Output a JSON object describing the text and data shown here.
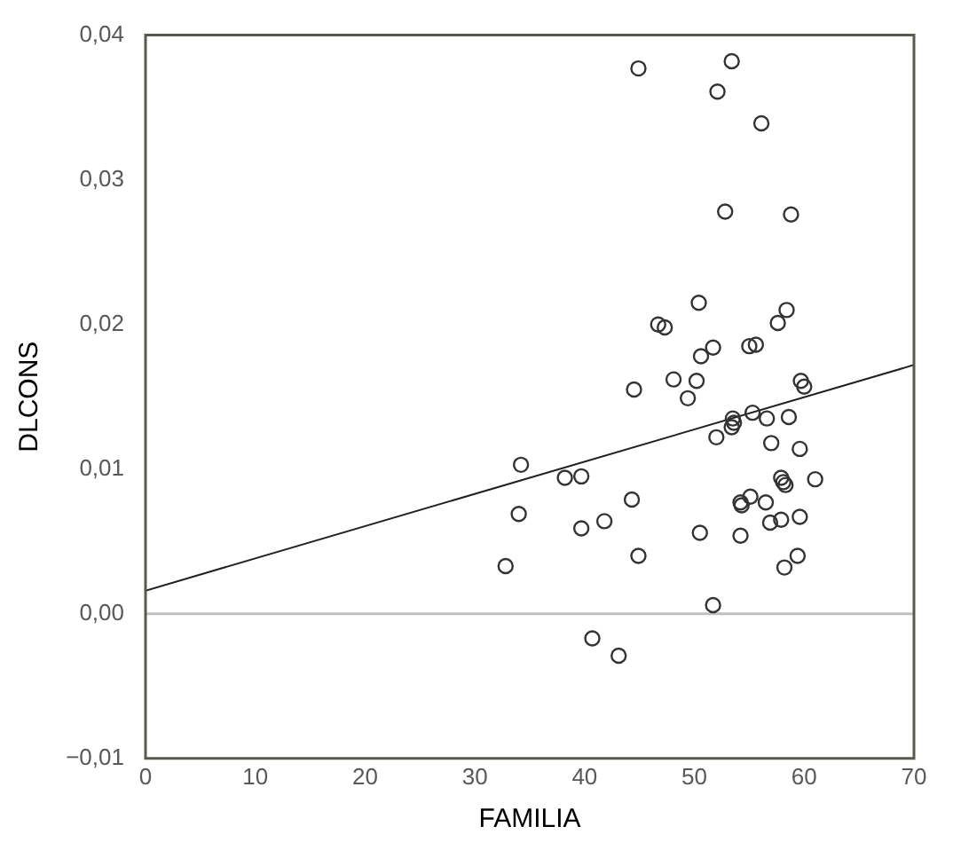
{
  "chart_data": {
    "type": "scatter",
    "xlabel": "FAMILIA",
    "ylabel": "DLCONS",
    "xlim": [
      0,
      70
    ],
    "xticks": [
      0,
      10,
      20,
      30,
      40,
      50,
      60,
      70
    ],
    "ylim": [
      -0.01,
      0.04
    ],
    "yticks": [
      {
        "value": -0.01,
        "label": "−0,01"
      },
      {
        "value": 0,
        "label": "0,00"
      },
      {
        "value": 0.01,
        "label": "0,01"
      },
      {
        "value": 0.02,
        "label": "0,02"
      },
      {
        "value": 0.03,
        "label": "0,03"
      },
      {
        "value": 0.04,
        "label": "0,04"
      }
    ],
    "grid": false,
    "legend": false,
    "marker": "circle",
    "ref_lines": [
      {
        "axis": "y",
        "value": 0,
        "color": "#c0c0c0"
      }
    ],
    "series": [
      {
        "color": "#333333",
        "x": [
          44.9,
          53.4,
          52.1,
          56.1,
          52.8,
          58.8,
          50.4,
          58.4,
          57.6,
          46.7,
          47.3,
          51.7,
          50.6,
          55.0,
          55.6,
          48.1,
          50.2,
          44.5,
          49.4,
          59.7,
          60.0,
          53.5,
          53.6,
          53.4,
          55.3,
          56.6,
          58.6,
          52.0,
          57.0,
          59.6,
          34.2,
          38.2,
          39.7,
          57.9,
          58.1,
          58.3,
          61.0,
          44.3,
          55.1,
          54.2,
          54.3,
          56.5,
          34.0,
          41.8,
          39.7,
          56.9,
          57.9,
          59.6,
          50.5,
          54.2,
          44.9,
          59.4,
          58.2,
          32.8,
          51.7,
          40.7,
          43.1
        ],
        "values": [
          0.0377,
          0.0382,
          0.0361,
          0.0339,
          0.0278,
          0.0276,
          0.0215,
          0.021,
          0.0201,
          0.02,
          0.0198,
          0.0184,
          0.0178,
          0.0185,
          0.0186,
          0.0162,
          0.0161,
          0.0155,
          0.0149,
          0.0161,
          0.0157,
          0.0135,
          0.0132,
          0.0129,
          0.0139,
          0.0135,
          0.0136,
          0.0122,
          0.0118,
          0.0114,
          0.0103,
          0.0094,
          0.0095,
          0.0094,
          0.0091,
          0.0089,
          0.0093,
          0.0079,
          0.0081,
          0.0077,
          0.0075,
          0.0077,
          0.0069,
          0.0064,
          0.0059,
          0.0063,
          0.0065,
          0.0067,
          0.0056,
          0.0054,
          0.004,
          0.004,
          0.0032,
          0.0033,
          0.0006,
          -0.0017,
          -0.0029
        ]
      },
      {
        "type": "line",
        "marker": "none",
        "color": "#222222",
        "x": [
          0,
          70
        ],
        "values": [
          0.0016,
          0.0172
        ]
      }
    ]
  }
}
